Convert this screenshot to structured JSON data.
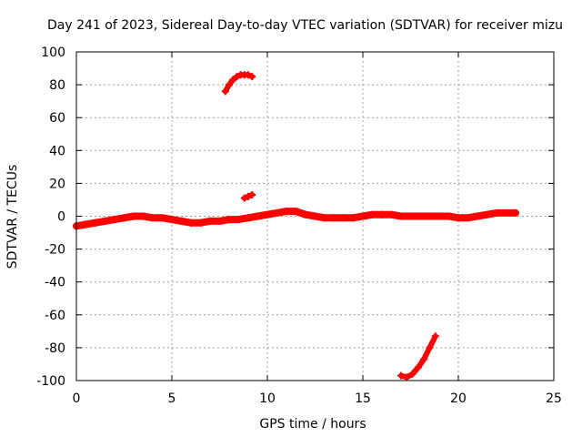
{
  "chart_data": {
    "type": "scatter",
    "title": "Day 241 of 2023, Sidereal Day-to-day VTEC variation (SDTVAR) for receiver mizu",
    "xlabel": "GPS time / hours",
    "ylabel": "SDTVAR / TECUs",
    "xlim": [
      0,
      25
    ],
    "ylim": [
      -100,
      100
    ],
    "xticks": [
      0,
      5,
      10,
      15,
      20,
      25
    ],
    "xtick_labels": [
      "0",
      "5",
      "10",
      "15",
      "20",
      "25"
    ],
    "yticks": [
      100,
      80,
      60,
      40,
      20,
      0,
      -20,
      -40,
      -60,
      -80,
      -100
    ],
    "ytick_labels": [
      "100",
      "80",
      "60",
      "40",
      "20",
      "0",
      "-20",
      "-40",
      "-60",
      "-80",
      "-100"
    ],
    "grid": true,
    "marker_color": "#ff0000",
    "series": [
      {
        "name": "main-band",
        "x": [
          0,
          0.5,
          1,
          1.5,
          2,
          2.5,
          3,
          3.5,
          4,
          4.5,
          5,
          5.5,
          6,
          6.5,
          7,
          7.5,
          8,
          8.5,
          9,
          9.5,
          10,
          10.5,
          11,
          11.5,
          12,
          12.5,
          13,
          13.5,
          14,
          14.5,
          15,
          15.5,
          16,
          16.5,
          17,
          17.5,
          18,
          18.5,
          19,
          19.5,
          20,
          20.5,
          21,
          21.5,
          22,
          22.5,
          23
        ],
        "y": [
          -6,
          -5,
          -4,
          -3,
          -2,
          -1,
          0,
          0,
          -1,
          -1,
          -2,
          -3,
          -4,
          -4,
          -3,
          -3,
          -2,
          -2,
          -1,
          0,
          1,
          2,
          3,
          3,
          1,
          0,
          -1,
          -1,
          -1,
          -1,
          0,
          1,
          1,
          1,
          0,
          0,
          0,
          0,
          0,
          0,
          -1,
          -1,
          0,
          1,
          2,
          2,
          2
        ],
        "thickness": 3
      },
      {
        "name": "upper-arc",
        "x": [
          7.8,
          8.0,
          8.2,
          8.4,
          8.6,
          8.8,
          9.0,
          9.2
        ],
        "y": [
          76,
          80,
          83,
          85,
          86,
          86,
          86,
          85
        ],
        "thickness": 2
      },
      {
        "name": "small-segment",
        "x": [
          8.8,
          9.0,
          9.2
        ],
        "y": [
          11,
          12,
          13
        ],
        "thickness": 2
      },
      {
        "name": "lower-arc",
        "x": [
          17.0,
          17.3,
          17.6,
          17.9,
          18.2,
          18.5,
          18.8
        ],
        "y": [
          -97,
          -98,
          -96,
          -92,
          -87,
          -80,
          -73
        ],
        "thickness": 2
      }
    ]
  }
}
